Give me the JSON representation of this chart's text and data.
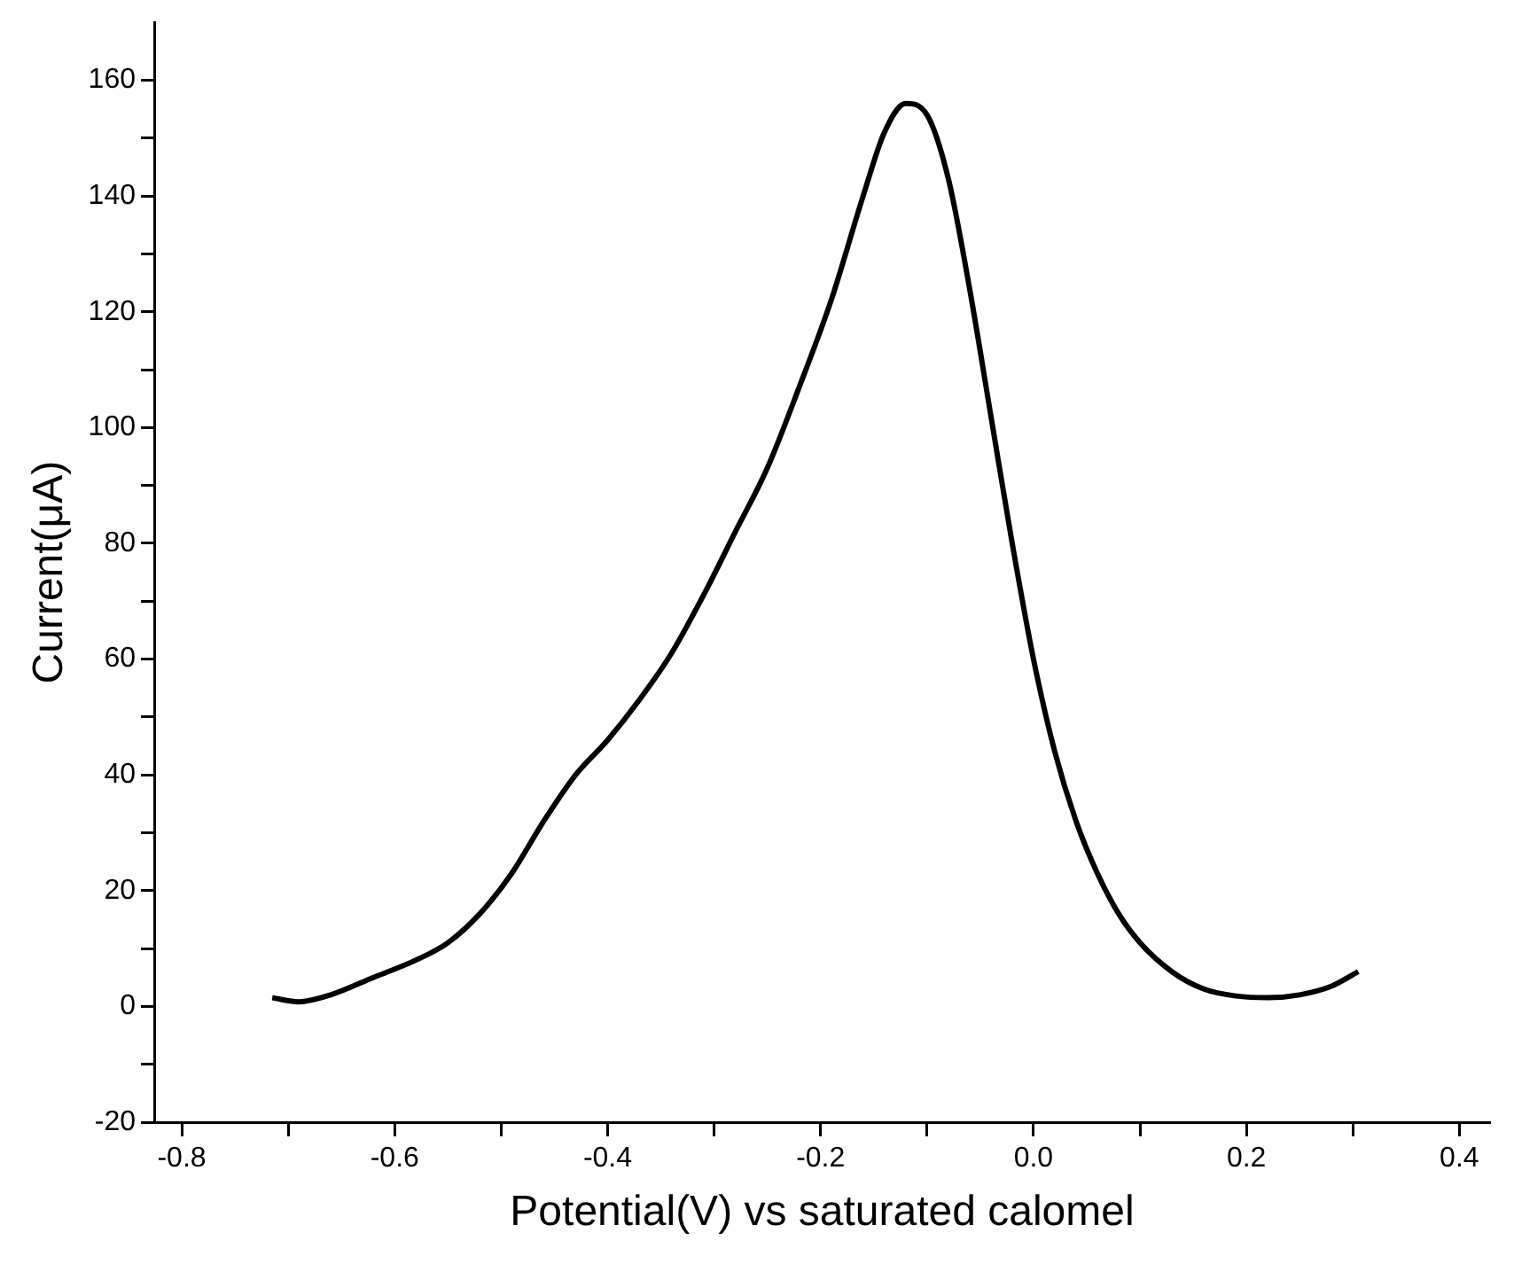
{
  "chart_data": {
    "type": "line",
    "xlabel": "Potential(V) vs saturated calomel",
    "ylabel": "Current(μA)",
    "x": [
      -0.715,
      -0.69,
      -0.66,
      -0.62,
      -0.58,
      -0.55,
      -0.52,
      -0.49,
      -0.46,
      -0.43,
      -0.4,
      -0.37,
      -0.34,
      -0.31,
      -0.28,
      -0.25,
      -0.22,
      -0.19,
      -0.16,
      -0.14,
      -0.12,
      -0.1,
      -0.08,
      -0.06,
      -0.04,
      -0.02,
      0.0,
      0.02,
      0.04,
      0.06,
      0.08,
      0.1,
      0.13,
      0.16,
      0.19,
      0.22,
      0.25,
      0.28,
      0.305
    ],
    "series": [
      {
        "color": "#000000",
        "values": [
          1.5,
          0.8,
          2,
          5,
          8,
          11,
          16,
          23,
          32,
          40,
          46,
          53,
          61,
          71,
          82,
          93,
          107,
          122,
          140,
          151,
          156,
          154,
          143,
          124,
          102,
          80,
          60,
          44,
          32,
          23,
          16,
          11,
          6,
          3,
          1.8,
          1.5,
          2,
          3.5,
          6
        ]
      }
    ],
    "xlim": [
      -0.825,
      0.428
    ],
    "ylim": [
      -20,
      170
    ],
    "xticks": [
      -0.8,
      {
        "value": -0.7,
        "label": null
      },
      -0.6,
      {
        "value": -0.5,
        "label": null
      },
      -0.4,
      {
        "value": -0.3,
        "label": null
      },
      -0.2,
      {
        "value": -0.1,
        "label": null
      },
      {
        "value": 0,
        "label": "0.0"
      },
      {
        "value": 0.1,
        "label": null
      },
      0.2,
      {
        "value": 0.3,
        "label": null
      },
      0.4
    ],
    "yticks": [
      -20,
      {
        "value": -10,
        "label": null
      },
      0,
      {
        "value": 10,
        "label": null
      },
      20,
      {
        "value": 30,
        "label": null
      },
      40,
      {
        "value": 50,
        "label": null
      },
      60,
      {
        "value": 70,
        "label": null
      },
      80,
      {
        "value": 90,
        "label": null
      },
      100,
      {
        "value": 110,
        "label": null
      },
      120,
      {
        "value": 130,
        "label": null
      },
      140,
      {
        "value": 150,
        "label": null
      },
      160
    ],
    "grid": false,
    "legend": false,
    "marker": "none",
    "line_style": "solid"
  }
}
